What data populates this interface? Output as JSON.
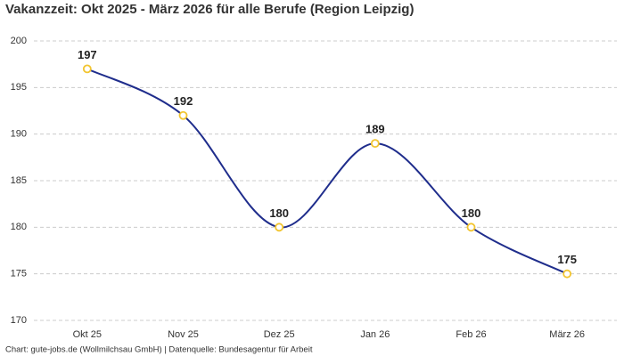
{
  "chart_data": {
    "type": "line",
    "title": "Vakanzzeit: Okt 2025 - März 2026 für alle Berufe (Region Leipzig)",
    "categories": [
      "Okt 25",
      "Nov 25",
      "Dez 25",
      "Jan 26",
      "Feb 26",
      "März 26"
    ],
    "values": [
      197,
      192,
      180,
      189,
      180,
      175
    ],
    "color": "#1f2d8c",
    "marker_color": "#f2c530",
    "ylim": [
      170,
      200
    ],
    "yticks": [
      170,
      175,
      180,
      185,
      190,
      195,
      200
    ],
    "grid": true,
    "source": "Chart: gute-jobs.de (Wollmilchsau GmbH) | Datenquelle: Bundesagentur für Arbeit"
  }
}
